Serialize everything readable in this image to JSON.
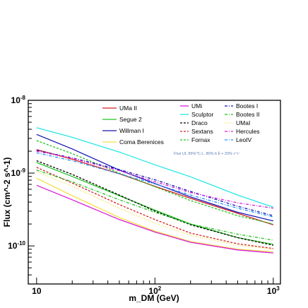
{
  "chart_data": {
    "type": "line",
    "xscale": "log",
    "yscale": "log",
    "xlim": [
      8.5,
      1150
    ],
    "ylim": [
      3e-11,
      1e-08
    ],
    "xlabel": "m_DM (GeV)",
    "ylabel": "Flux (cm^-2 s^-1)",
    "x_ticks": [
      {
        "value": 10,
        "base": "10",
        "exp": ""
      },
      {
        "value": 100,
        "base": "10",
        "exp": "2"
      },
      {
        "value": 1000,
        "base": "10",
        "exp": "3"
      }
    ],
    "y_ticks": [
      {
        "value": 1e-08,
        "base": "10",
        "exp": "-8"
      },
      {
        "value": 1e-09,
        "base": "10",
        "exp": "-9"
      },
      {
        "value": 1e-10,
        "base": "10",
        "exp": "-10"
      }
    ],
    "annotation": "Flux UL 95%^C.L. 80% b b̄ + 20% τ⁺τ⁻",
    "grid": false,
    "legend_position": "top",
    "x": [
      10,
      20,
      50,
      100,
      200,
      500,
      1000
    ],
    "series": [
      {
        "name": "UMa II",
        "color": "#d42020",
        "dash": "solid",
        "values": [
          2.1e-09,
          1.55e-09,
          9.8e-10,
          6.6e-10,
          4.5e-10,
          2.8e-10,
          1.95e-10
        ]
      },
      {
        "name": "Segue 2",
        "color": "#22c322",
        "dash": "solid",
        "values": [
          1.4e-09,
          9e-10,
          4.9e-10,
          3.1e-10,
          2e-10,
          1.3e-10,
          1.05e-10
        ]
      },
      {
        "name": "Willman I",
        "color": "#1414b4",
        "dash": "solid",
        "values": [
          3.4e-09,
          2.15e-09,
          1.1e-09,
          7.2e-10,
          4.7e-10,
          2.9e-10,
          2.2e-10
        ]
      },
      {
        "name": "Coma Berenices",
        "color": "#f3e04a",
        "dash": "solid",
        "values": [
          8.5e-10,
          4.9e-10,
          2.45e-10,
          1.6e-10,
          1.15e-10,
          9e-11,
          8.3e-11
        ]
      },
      {
        "name": "UMi",
        "color": "#d81cd8",
        "dash": "solid",
        "values": [
          6.8e-10,
          4.3e-10,
          2.3e-10,
          1.55e-10,
          1.12e-10,
          8.8e-11,
          8e-11
        ]
      },
      {
        "name": "Sculptor",
        "color": "#28e6e6",
        "dash": "solid",
        "values": [
          4.2e-09,
          3.1e-09,
          1.95e-09,
          1.3e-09,
          8.9e-10,
          5e-10,
          3.4e-10
        ]
      },
      {
        "name": "Draco",
        "color": "#000000",
        "dash": "dashed",
        "values": [
          1.48e-09,
          9.6e-10,
          5e-10,
          3e-10,
          1.95e-10,
          1.3e-10,
          1.02e-10
        ]
      },
      {
        "name": "Sextans",
        "color": "#d42020",
        "dash": "dashed",
        "values": [
          1.2e-09,
          7.3e-10,
          3.7e-10,
          2.3e-10,
          1.5e-10,
          1.07e-10,
          9.2e-11
        ]
      },
      {
        "name": "Fornax",
        "color": "#22c322",
        "dash": "dashed",
        "values": [
          2.8e-09,
          1.85e-09,
          1e-09,
          6.5e-10,
          4.2e-10,
          2.6e-10,
          2e-10
        ]
      },
      {
        "name": "Bootes I",
        "color": "#1414b4",
        "dash": "dashdot",
        "values": [
          2.05e-09,
          1.62e-09,
          1.12e-09,
          8.1e-10,
          5.6e-10,
          3.5e-10,
          2.6e-10
        ]
      },
      {
        "name": "Bootes II",
        "color": "#22c322",
        "dash": "dashdot",
        "values": [
          1.1e-09,
          7.6e-10,
          4.3e-10,
          2.9e-10,
          2e-10,
          1.45e-10,
          1.2e-10
        ]
      },
      {
        "name": "UMaI",
        "color": "#f3e04a",
        "dash": "dotted",
        "values": [
          1.05e-09,
          6.6e-10,
          3.3e-10,
          2.05e-10,
          1.4e-10,
          1.02e-10,
          9e-11
        ]
      },
      {
        "name": "Hercules",
        "color": "#d81cd8",
        "dash": "dashdot",
        "values": [
          2e-09,
          1.6e-09,
          1.08e-09,
          7.6e-10,
          5.4e-10,
          3.9e-10,
          3.3e-10
        ]
      },
      {
        "name": "LeoIV",
        "color": "#1e90ff",
        "dash": "dashdot",
        "values": [
          1.9e-09,
          1.48e-09,
          9.8e-10,
          7.1e-10,
          5e-10,
          3.3e-10,
          2.5e-10
        ]
      }
    ]
  }
}
